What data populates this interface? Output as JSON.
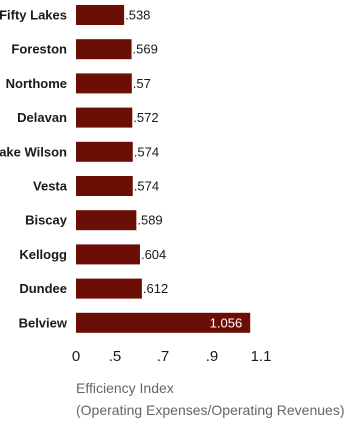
{
  "chart_data": {
    "type": "bar",
    "orientation": "horizontal",
    "categories": [
      "Fifty Lakes",
      "Foreston",
      "Northome",
      "Delavan",
      "Lake Wilson",
      "Vesta",
      "Biscay",
      "Kellogg",
      "Dundee",
      "Belview"
    ],
    "values": [
      0.538,
      0.569,
      0.57,
      0.572,
      0.574,
      0.574,
      0.589,
      0.604,
      0.612,
      1.056
    ],
    "value_labels": [
      ".538",
      ".569",
      ".57",
      ".572",
      ".574",
      ".574",
      ".589",
      ".604",
      ".612",
      "1.056"
    ],
    "xlim": [
      0,
      1.1
    ],
    "x_ticks": [
      0,
      0.5,
      0.7,
      0.9,
      1.1
    ],
    "x_tick_labels": [
      "0",
      ".5",
      ".7",
      ".9",
      "1.1"
    ],
    "xlabel_line1": "Efficiency Index",
    "xlabel_line2": "(Operating Expenses/Operating Revenues)",
    "bar_color": "#6b0f06",
    "grid": false
  }
}
